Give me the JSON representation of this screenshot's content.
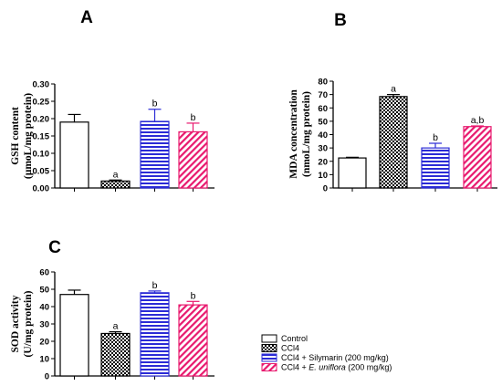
{
  "chart_data": [
    {
      "type": "bar",
      "panel_label": "A",
      "ylabel_line1": "GSH content",
      "ylabel_line2": "(µmoL/mg protein)",
      "ylim": [
        0,
        0.3
      ],
      "yticks": [
        "0.00",
        "0.05",
        "0.10",
        "0.15",
        "0.20",
        "0.25",
        "0.30"
      ],
      "yticks_values": [
        0,
        0.05,
        0.1,
        0.15,
        0.2,
        0.25,
        0.3
      ],
      "series": [
        {
          "group": "Control",
          "value": 0.19,
          "error": 0.022,
          "label": ""
        },
        {
          "group": "CCl4",
          "value": 0.02,
          "error": 0.003,
          "label": "a"
        },
        {
          "group": "CCl4 + Silymarin (200 mg/kg)",
          "value": 0.192,
          "error": 0.035,
          "label": "b"
        },
        {
          "group": "CCl4 + E. uniflora (200 mg/kg)",
          "value": 0.162,
          "error": 0.025,
          "label": "b"
        }
      ]
    },
    {
      "type": "bar",
      "panel_label": "B",
      "ylabel_line1": "MDA concentration",
      "ylabel_line2": "(nmoL/mg protein)",
      "ylim": [
        0,
        80
      ],
      "yticks": [
        "0",
        "10",
        "20",
        "30",
        "40",
        "50",
        "60",
        "70",
        "80"
      ],
      "yticks_values": [
        0,
        10,
        20,
        30,
        40,
        50,
        60,
        70,
        80
      ],
      "series": [
        {
          "group": "Control",
          "value": 22.5,
          "error": 0.5,
          "label": ""
        },
        {
          "group": "CCl4",
          "value": 68.5,
          "error": 1.5,
          "label": "a"
        },
        {
          "group": "CCl4 + Silymarin (200 mg/kg)",
          "value": 30,
          "error": 3.5,
          "label": "b"
        },
        {
          "group": "CCl4 + E. uniflora (200 mg/kg)",
          "value": 46,
          "error": 0.5,
          "label": "a,b"
        }
      ]
    },
    {
      "type": "bar",
      "panel_label": "C",
      "ylabel_line1": "SOD activity",
      "ylabel_line2": "(U/mg protein)",
      "ylim": [
        0,
        60
      ],
      "yticks": [
        "0",
        "10",
        "20",
        "30",
        "40",
        "50",
        "60"
      ],
      "yticks_values": [
        0,
        10,
        20,
        30,
        40,
        50,
        60
      ],
      "series": [
        {
          "group": "Control",
          "value": 47,
          "error": 2.5,
          "label": ""
        },
        {
          "group": "CCl4",
          "value": 24.5,
          "error": 1,
          "label": "a"
        },
        {
          "group": "CCl4 + Silymarin (200 mg/kg)",
          "value": 48,
          "error": 1,
          "label": "b"
        },
        {
          "group": "CCl4 + E. uniflora (200 mg/kg)",
          "value": 41,
          "error": 2,
          "label": "b"
        }
      ]
    }
  ],
  "legend": {
    "items": [
      {
        "pattern": "control",
        "text": "Control",
        "italic": "",
        "suffix": ""
      },
      {
        "pattern": "ccl4",
        "text": "CCl4",
        "italic": "",
        "suffix": ""
      },
      {
        "pattern": "silymarin",
        "text": "CCl4 + Silymarin (200 mg/kg)",
        "italic": "",
        "suffix": ""
      },
      {
        "pattern": "uniflora",
        "text": "CCl4 + ",
        "italic": "E. uniflora",
        "suffix": " (200 mg/kg)"
      }
    ]
  },
  "colors": {
    "silymarin": "#2b2bd6",
    "uniflora": "#e8196e",
    "axis": "#000000"
  }
}
